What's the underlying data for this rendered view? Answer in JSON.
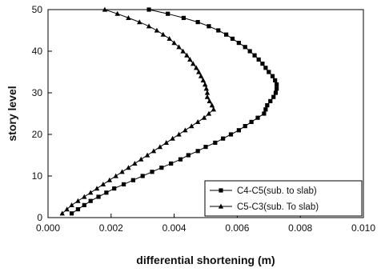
{
  "chart_data": {
    "type": "line",
    "title": "",
    "xlabel": "differential shortening (m)",
    "ylabel": "story level",
    "xlim": [
      0,
      0.01
    ],
    "ylim": [
      0,
      50
    ],
    "x_ticks": [
      "0.000",
      "0.002",
      "0.004",
      "0.006",
      "0.008",
      "0.010"
    ],
    "y_ticks": [
      "0",
      "10",
      "20",
      "30",
      "40",
      "50"
    ],
    "grid": false,
    "legend_position": "bottom-right",
    "series": [
      {
        "name": "C4-C5(sub. to slab)",
        "marker": "square",
        "color": "#000000",
        "points": [
          [
            0.00075,
            1
          ],
          [
            0.00095,
            2
          ],
          [
            0.00115,
            3
          ],
          [
            0.00135,
            4
          ],
          [
            0.0016,
            5
          ],
          [
            0.00185,
            6
          ],
          [
            0.0021,
            7
          ],
          [
            0.0024,
            8
          ],
          [
            0.0027,
            9
          ],
          [
            0.003,
            10
          ],
          [
            0.0033,
            11
          ],
          [
            0.0036,
            12
          ],
          [
            0.0039,
            13
          ],
          [
            0.0042,
            14
          ],
          [
            0.00445,
            15
          ],
          [
            0.00475,
            16
          ],
          [
            0.005,
            17
          ],
          [
            0.0053,
            18
          ],
          [
            0.00555,
            19
          ],
          [
            0.0058,
            20
          ],
          [
            0.00605,
            21
          ],
          [
            0.00625,
            22
          ],
          [
            0.00645,
            23
          ],
          [
            0.00665,
            24
          ],
          [
            0.00685,
            25
          ],
          [
            0.0069,
            26
          ],
          [
            0.00695,
            27
          ],
          [
            0.00705,
            28
          ],
          [
            0.00715,
            29
          ],
          [
            0.00722,
            30
          ],
          [
            0.00725,
            31
          ],
          [
            0.00725,
            32
          ],
          [
            0.0072,
            33
          ],
          [
            0.00712,
            34
          ],
          [
            0.007,
            35
          ],
          [
            0.0069,
            36
          ],
          [
            0.0068,
            37
          ],
          [
            0.00668,
            38
          ],
          [
            0.00655,
            39
          ],
          [
            0.0064,
            40
          ],
          [
            0.00625,
            41
          ],
          [
            0.00605,
            42
          ],
          [
            0.00585,
            43
          ],
          [
            0.00565,
            44
          ],
          [
            0.0054,
            45
          ],
          [
            0.0051,
            46
          ],
          [
            0.00475,
            47
          ],
          [
            0.0043,
            48
          ],
          [
            0.0038,
            49
          ],
          [
            0.0032,
            50
          ]
        ]
      },
      {
        "name": "C5-C3(sub. To slab)",
        "marker": "triangle",
        "color": "#000000",
        "points": [
          [
            0.00045,
            1
          ],
          [
            0.0006,
            2
          ],
          [
            0.00075,
            3
          ],
          [
            0.00095,
            4
          ],
          [
            0.00115,
            5
          ],
          [
            0.00135,
            6
          ],
          [
            0.00155,
            7
          ],
          [
            0.00175,
            8
          ],
          [
            0.00195,
            9
          ],
          [
            0.00215,
            10
          ],
          [
            0.00235,
            11
          ],
          [
            0.00255,
            12
          ],
          [
            0.00275,
            13
          ],
          [
            0.00295,
            14
          ],
          [
            0.00315,
            15
          ],
          [
            0.00335,
            16
          ],
          [
            0.00355,
            17
          ],
          [
            0.00375,
            18
          ],
          [
            0.00395,
            19
          ],
          [
            0.00415,
            20
          ],
          [
            0.00435,
            21
          ],
          [
            0.00455,
            22
          ],
          [
            0.00475,
            23
          ],
          [
            0.00495,
            24
          ],
          [
            0.0051,
            25
          ],
          [
            0.00525,
            26
          ],
          [
            0.0052,
            27
          ],
          [
            0.00512,
            28
          ],
          [
            0.00505,
            29
          ],
          [
            0.00505,
            30
          ],
          [
            0.00502,
            31
          ],
          [
            0.00498,
            32
          ],
          [
            0.00492,
            33
          ],
          [
            0.00485,
            34
          ],
          [
            0.00478,
            35
          ],
          [
            0.0047,
            36
          ],
          [
            0.0046,
            37
          ],
          [
            0.0045,
            38
          ],
          [
            0.0044,
            39
          ],
          [
            0.00428,
            40
          ],
          [
            0.00415,
            41
          ],
          [
            0.004,
            42
          ],
          [
            0.00385,
            43
          ],
          [
            0.00365,
            44
          ],
          [
            0.00345,
            45
          ],
          [
            0.0032,
            46
          ],
          [
            0.0029,
            47
          ],
          [
            0.00255,
            48
          ],
          [
            0.0022,
            49
          ],
          [
            0.0018,
            50
          ]
        ]
      }
    ]
  }
}
